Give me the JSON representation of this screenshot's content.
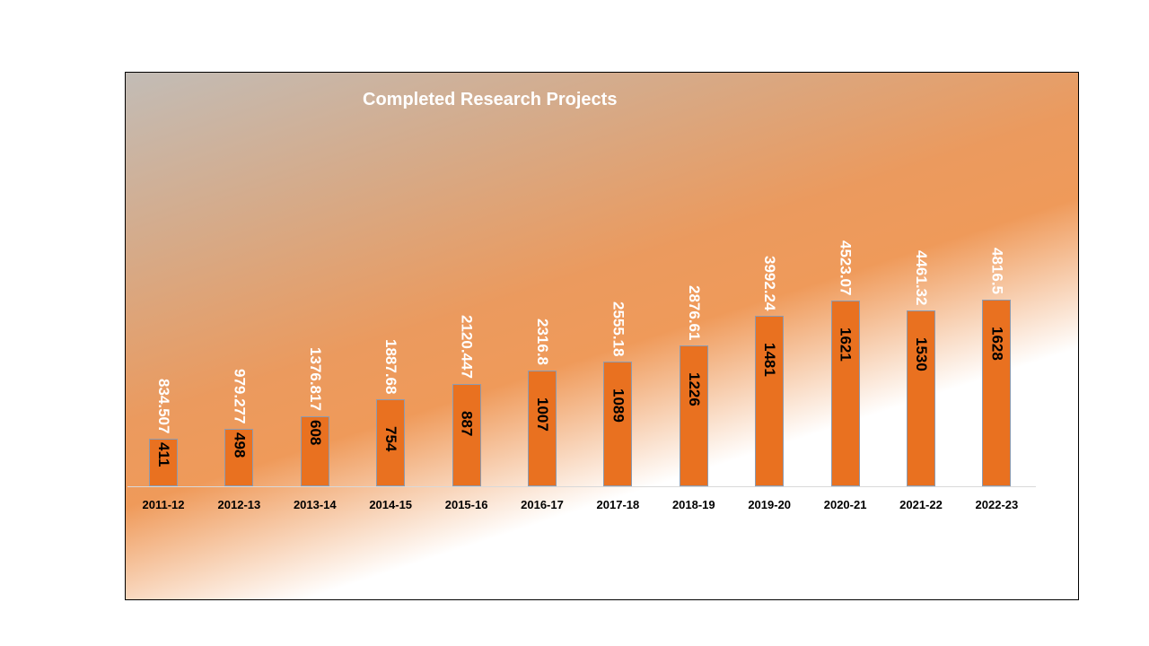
{
  "chart_data": {
    "type": "bar",
    "title": "Completed Research Projects",
    "categories": [
      "2011-12",
      "2012-13",
      "2013-14",
      "2014-15",
      "2015-16",
      "2016-17",
      "2017-18",
      "2018-19",
      "2019-20",
      "2020-21",
      "2021-22",
      "2022-23"
    ],
    "series": [
      {
        "values": [
          411,
          498,
          608,
          754,
          887,
          1007,
          1089,
          1226,
          1481,
          1621,
          1530,
          1628
        ]
      },
      {
        "values": [
          "834.507",
          "979.277",
          "1376.817",
          "1887.68",
          "2120.447",
          "2316.8",
          "2555.18",
          "2876.61",
          "3992.24",
          "4523.07",
          "4461.32",
          "4816.5"
        ]
      }
    ],
    "bar_color": "#e97120",
    "grid": false,
    "legend": "none"
  }
}
